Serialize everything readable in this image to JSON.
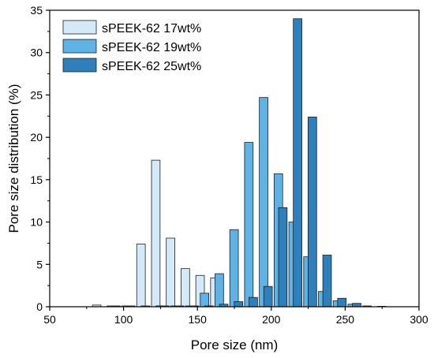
{
  "chart_data": {
    "type": "bar",
    "xlabel": "Pore size (nm)",
    "ylabel": "Pore size distribution (%)",
    "xlim": [
      50,
      300
    ],
    "ylim": [
      0,
      35
    ],
    "xticks": [
      50,
      100,
      150,
      200,
      250,
      300
    ],
    "yticks": [
      0,
      5,
      10,
      15,
      20,
      25,
      30,
      35
    ],
    "grid": false,
    "legend_position": "top-left",
    "series": [
      {
        "name": "sPEEK-62 17wt%",
        "color": "#d4eaf8",
        "x": [
          85,
          95,
          105,
          115,
          125,
          135,
          145,
          155,
          165
        ],
        "values": [
          0.2,
          0.1,
          0.1,
          7.4,
          17.3,
          8.1,
          4.5,
          3.7,
          3.4
        ]
      },
      {
        "name": "sPEEK-62 19wt%",
        "color": "#5db2e6",
        "x": [
          95,
          105,
          115,
          125,
          135,
          145,
          155,
          165,
          175,
          185,
          195,
          205,
          215,
          225,
          235,
          245,
          255,
          265,
          275
        ],
        "values": [
          0.1,
          0.1,
          0.1,
          0.1,
          0.1,
          0.1,
          1.6,
          3.9,
          9.1,
          19.4,
          24.7,
          15.7,
          10.0,
          5.9,
          1.8,
          0.7,
          0.3,
          0.1,
          0.05
        ]
      },
      {
        "name": "sPEEK-62 25wt%",
        "color": "#2e7fba",
        "x": [
          125,
          135,
          145,
          155,
          165,
          175,
          185,
          195,
          205,
          215,
          225,
          235,
          245,
          255
        ],
        "values": [
          0.1,
          0.1,
          0.1,
          0.1,
          0.3,
          0.6,
          1.1,
          2.4,
          11.7,
          34.0,
          22.4,
          6.1,
          1.0,
          0.4
        ]
      }
    ]
  }
}
